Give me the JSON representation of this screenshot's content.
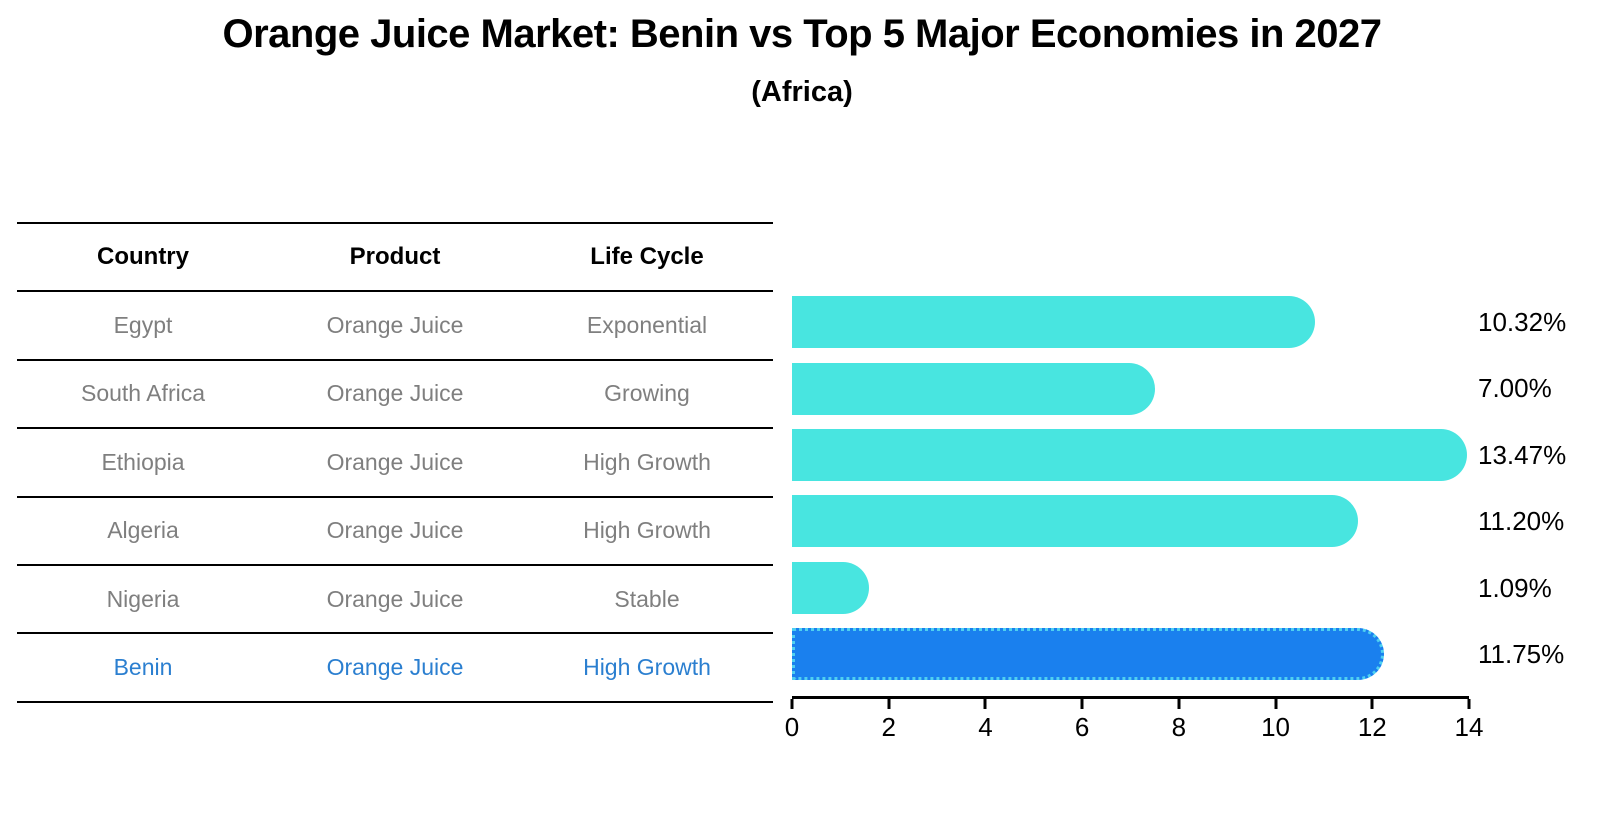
{
  "title": "Orange Juice Market: Benin vs Top 5 Major Economies in 2027",
  "subtitle": "(Africa)",
  "table": {
    "headers": [
      "Country",
      "Product",
      "Life Cycle"
    ],
    "rows": [
      {
        "country": "Egypt",
        "product": "Orange Juice",
        "life_cycle": "Exponential",
        "value_label": "10.32%"
      },
      {
        "country": "South Africa",
        "product": "Orange Juice",
        "life_cycle": "Growing",
        "value_label": "7.00%"
      },
      {
        "country": "Ethiopia",
        "product": "Orange Juice",
        "life_cycle": "High Growth",
        "value_label": "13.47%"
      },
      {
        "country": "Algeria",
        "product": "Orange Juice",
        "life_cycle": "High Growth",
        "value_label": "11.20%"
      },
      {
        "country": "Nigeria",
        "product": "Orange Juice",
        "life_cycle": "Stable",
        "value_label": "1.09%"
      },
      {
        "country": "Benin",
        "product": "Orange Juice",
        "life_cycle": "High Growth",
        "value_label": "11.75%"
      }
    ]
  },
  "chart_data": {
    "type": "bar",
    "orientation": "horizontal",
    "title": "Orange Juice Market: Benin vs Top 5 Major Economies in 2027",
    "subtitle": "(Africa)",
    "categories": [
      "Egypt",
      "South Africa",
      "Ethiopia",
      "Algeria",
      "Nigeria",
      "Benin"
    ],
    "values": [
      10.32,
      7.0,
      13.47,
      11.2,
      1.09,
      11.75
    ],
    "value_labels": [
      "10.32%",
      "7.00%",
      "13.47%",
      "11.20%",
      "1.09%",
      "11.75%"
    ],
    "highlight_category": "Benin",
    "highlight_index": 5,
    "xlim": [
      0,
      14
    ],
    "x_ticks": [
      0,
      2,
      4,
      6,
      8,
      10,
      12,
      14
    ],
    "grid": false,
    "legend": false
  },
  "colors": {
    "bar_default": "#48e5e0",
    "bar_highlight": "#1a80ee",
    "highlight_edge": "#4fd0f0",
    "row_text": "#7f7f7f",
    "highlight_text": "#2b7fd0",
    "axis": "#000000"
  }
}
